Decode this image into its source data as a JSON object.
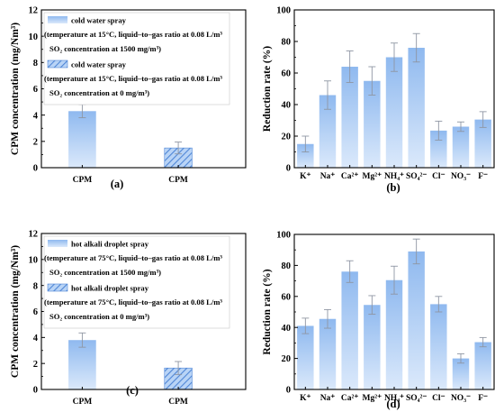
{
  "colors": {
    "bar": "#8fb9ef",
    "bar_light": "#dbe9fb",
    "hatch": "#4f86d6",
    "error": "#8f96a3",
    "axis": "#000000"
  },
  "chart_data": [
    {
      "panel": "(a)",
      "type": "bar",
      "ylabel": "CPM concentration (mg/Nm³)",
      "ylim": [
        0,
        12
      ],
      "yticks": [
        "0",
        "2",
        "4",
        "6",
        "8",
        "10",
        "12"
      ],
      "categories": [
        "CPM",
        "CPM"
      ],
      "values": [
        4.3,
        1.5
      ],
      "errors": [
        0.5,
        0.45
      ],
      "hatched": [
        false,
        true
      ],
      "legend": [
        {
          "name": "cold water spray",
          "hatched": false,
          "lines": [
            "(temperature at 15°C, liquid–to–gas ratio at 0.08 L/m³",
            "SO₂ concentration at 1500 mg/m³)"
          ]
        },
        {
          "name": "cold water spray",
          "hatched": true,
          "lines": [
            "(temperature at 15°C, liquid–to–gas ratio at 0.08 L/m³",
            "SO₂ concentration at 0 mg/m³)"
          ]
        }
      ]
    },
    {
      "panel": "(b)",
      "type": "bar",
      "ylabel": "Reduction rate (%)",
      "ylim": [
        0,
        100
      ],
      "yticks": [
        "0",
        "20",
        "40",
        "60",
        "80",
        "100"
      ],
      "categories": [
        "K⁺",
        "Na⁺",
        "Ca²⁺",
        "Mg²⁺",
        "NH₄⁺",
        "SO₄²⁻",
        "Cl⁻",
        "NO₃⁻",
        "F⁻"
      ],
      "values": [
        15,
        46,
        64,
        55,
        70,
        76,
        23.5,
        26,
        30.5
      ],
      "errors": [
        5,
        9,
        10,
        9,
        9,
        9,
        6,
        3,
        5
      ]
    },
    {
      "panel": "(c)",
      "type": "bar",
      "ylabel": "CPM concentration (mg/Nm³)",
      "ylim": [
        0,
        12
      ],
      "yticks": [
        "0",
        "2",
        "4",
        "6",
        "8",
        "10",
        "12"
      ],
      "categories": [
        "CPM",
        "CPM"
      ],
      "values": [
        3.8,
        1.65
      ],
      "errors": [
        0.55,
        0.5
      ],
      "hatched": [
        false,
        true
      ],
      "legend": [
        {
          "name": "hot alkali droplet spray",
          "hatched": false,
          "lines": [
            "(temperature at 75°C, liquid–to–gas ratio at 0.08 L/m³",
            "SO₂ concentration at 1500 mg/m³)"
          ]
        },
        {
          "name": "hot alkali droplet spray",
          "hatched": true,
          "lines": [
            "(temperature at 75°C, liquid–to–gas ratio at 0.08 L/m³",
            "SO₂ concentration at 0 mg/m³)"
          ]
        }
      ]
    },
    {
      "panel": "(d)",
      "type": "bar",
      "ylabel": "Reduction rate (%)",
      "ylim": [
        0,
        100
      ],
      "yticks": [
        "0",
        "20",
        "40",
        "60",
        "80",
        "100"
      ],
      "categories": [
        "K⁺",
        "Na⁺",
        "Ca²⁺",
        "Mg²⁺",
        "NH₄⁺",
        "SO₄²⁻",
        "Cl⁻",
        "NO₃⁻",
        "F⁻"
      ],
      "values": [
        41,
        45.5,
        76,
        54.5,
        70.5,
        89,
        55,
        20,
        30.5
      ],
      "errors": [
        5,
        6,
        7,
        6,
        9,
        8,
        5,
        3,
        3
      ]
    }
  ]
}
